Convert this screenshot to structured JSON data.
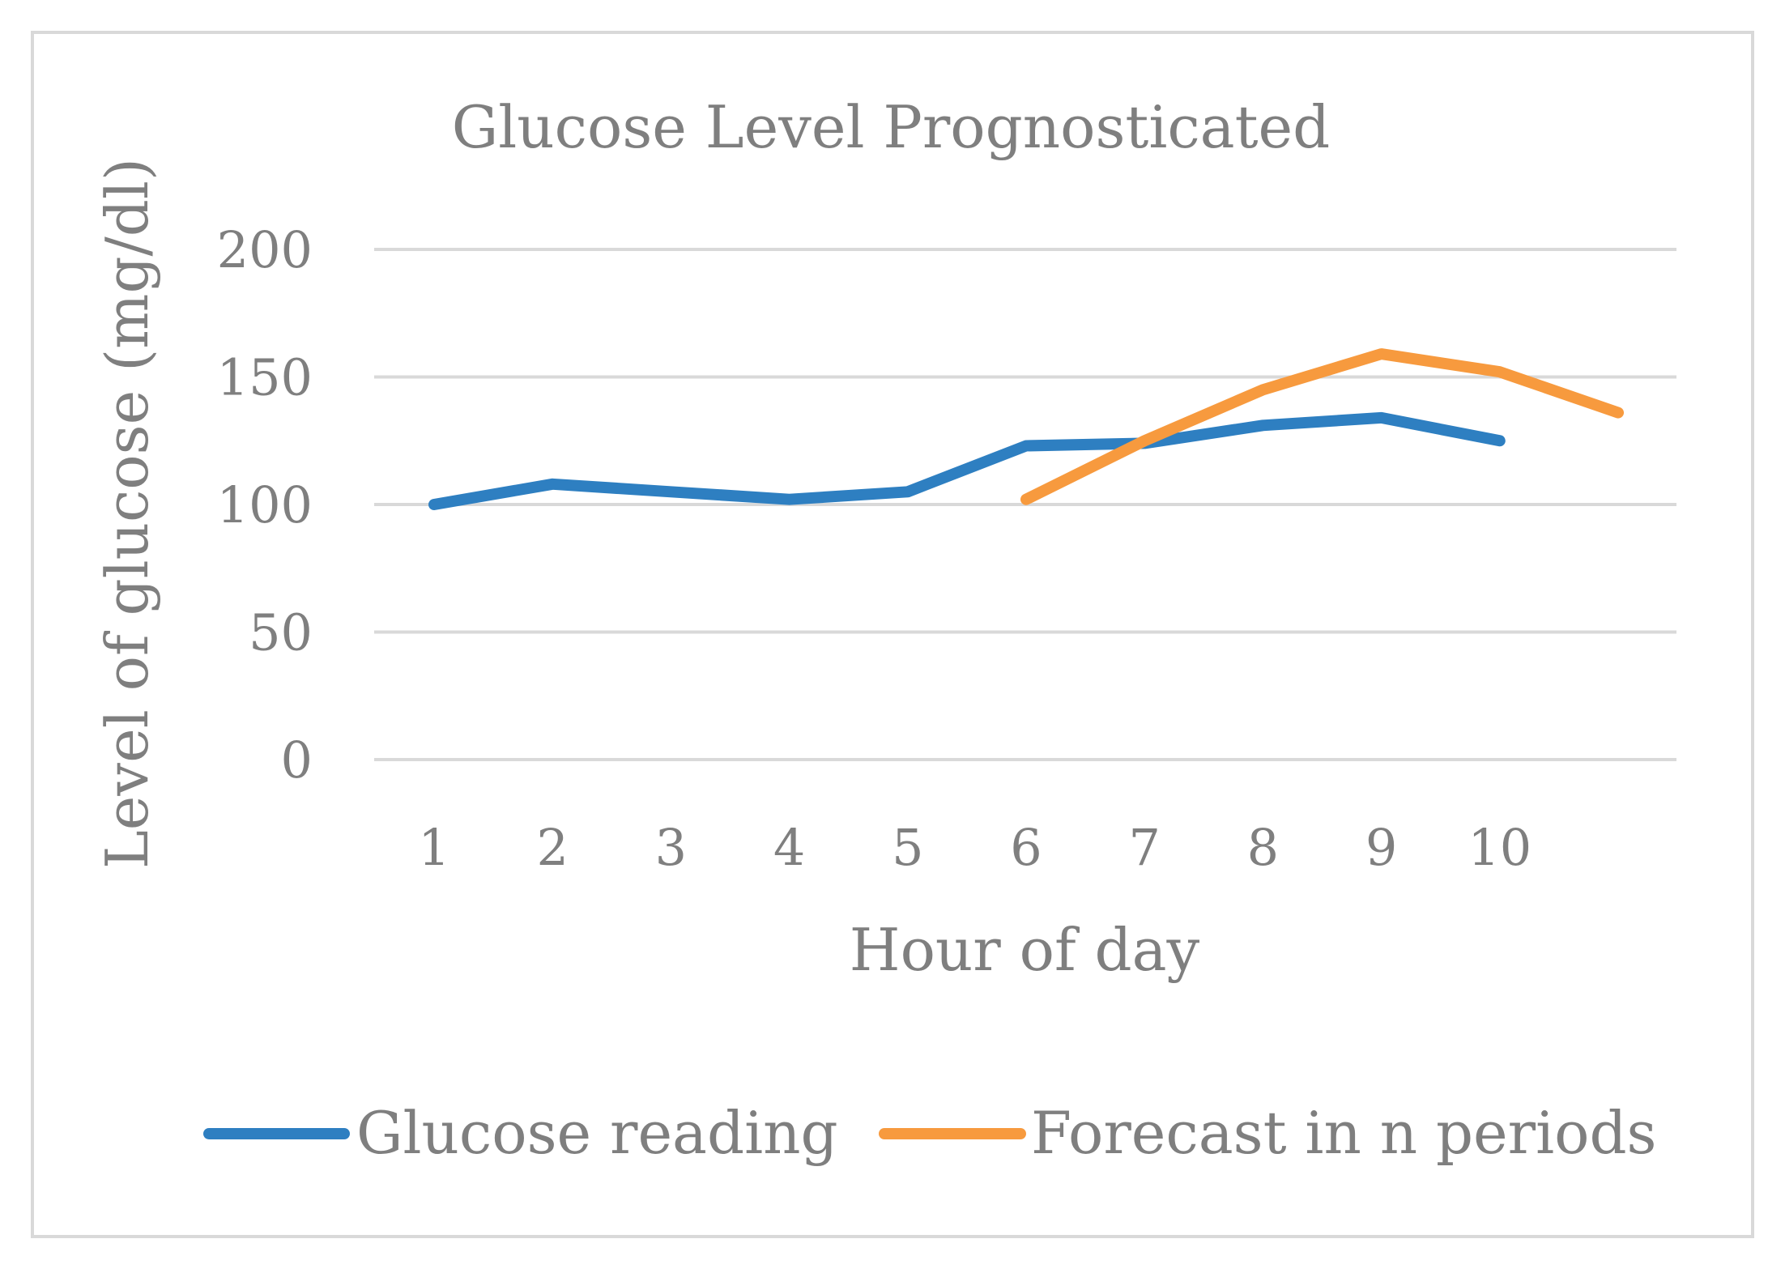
{
  "chart_data": {
    "type": "line",
    "title": "Glucose Level Prognosticated",
    "xlabel": "Hour of day",
    "ylabel": "Level of glucose  (mg/dl)",
    "categories": [
      "1",
      "2",
      "3",
      "4",
      "5",
      "6",
      "7",
      "8",
      "9",
      "10",
      ""
    ],
    "yticks": [
      "0",
      "50",
      "100",
      "150",
      "200"
    ],
    "ylim": [
      0,
      200
    ],
    "grid": true,
    "legend_position": "bottom",
    "series": [
      {
        "name": "Glucose reading",
        "color": "#2e7fc1",
        "values": [
          100,
          108,
          105,
          102,
          105,
          123,
          124,
          131,
          134,
          125,
          null
        ]
      },
      {
        "name": "Forecast in n periods",
        "color": "#f79a3e",
        "values": [
          null,
          null,
          null,
          null,
          null,
          102,
          125,
          145,
          159,
          152,
          136
        ]
      }
    ]
  }
}
